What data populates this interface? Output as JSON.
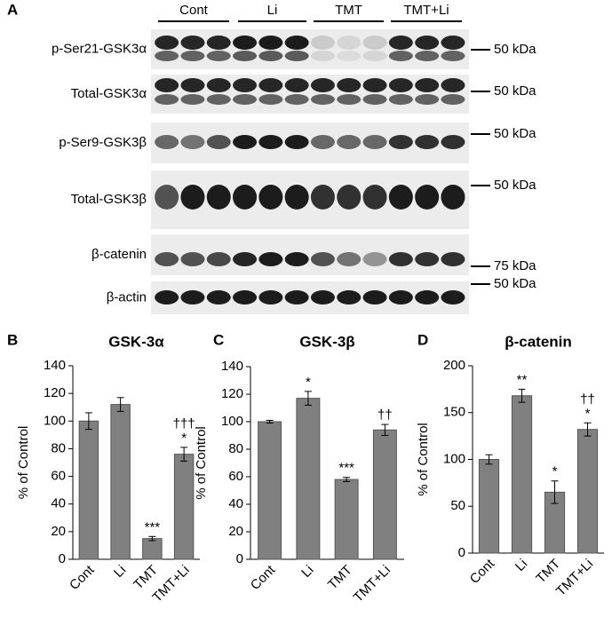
{
  "blot": {
    "panel": "A",
    "groups": [
      "Cont",
      "Li",
      "TMT",
      "TMT+Li"
    ],
    "rows": [
      {
        "label": "p-Ser21-GSK3α",
        "marker": "50 kDa"
      },
      {
        "label": "Total-GSK3α",
        "marker": "50 kDa"
      },
      {
        "label": "p-Ser9-GSK3β",
        "marker": "50 kDa"
      },
      {
        "label": "Total-GSK3β",
        "marker": "50 kDa"
      },
      {
        "label": "β-catenin",
        "marker": "75 kDa"
      },
      {
        "label": "β-actin",
        "marker": "50 kDa"
      }
    ]
  },
  "chart_data": [
    {
      "type": "bar",
      "panel": "B",
      "title": "GSK-3α",
      "y_label": "% of Control",
      "categories": [
        "Cont",
        "Li",
        "TMT",
        "TMT+Li"
      ],
      "values": [
        100,
        112,
        15,
        76
      ],
      "errors": [
        6,
        5,
        1.5,
        5
      ],
      "significance": [
        null,
        null,
        "***",
        "*"
      ],
      "daggers": [
        null,
        null,
        null,
        "†††"
      ],
      "color": "#808080",
      "ylim": [
        0,
        140
      ],
      "yticks": [
        0,
        20,
        40,
        60,
        80,
        100,
        120,
        140
      ],
      "grid": false
    },
    {
      "type": "bar",
      "panel": "C",
      "title": "GSK-3β",
      "y_label": "% of Control",
      "categories": [
        "Cont",
        "Li",
        "TMT",
        "TMT+Li"
      ],
      "values": [
        100,
        117,
        58,
        94
      ],
      "errors": [
        1,
        5,
        1.5,
        4
      ],
      "significance": [
        null,
        "*",
        "***",
        null
      ],
      "daggers": [
        null,
        null,
        null,
        "††"
      ],
      "color": "#808080",
      "ylim": [
        0,
        140
      ],
      "yticks": [
        0,
        20,
        40,
        60,
        80,
        100,
        120,
        140
      ],
      "grid": false
    },
    {
      "type": "bar",
      "panel": "D",
      "title": "β-catenin",
      "y_label": "% of Control",
      "categories": [
        "Cont",
        "Li",
        "TMT",
        "TMT+Li"
      ],
      "values": [
        100,
        168,
        65,
        132
      ],
      "errors": [
        5,
        7,
        12,
        7
      ],
      "significance": [
        null,
        "**",
        "*",
        "*"
      ],
      "daggers": [
        null,
        null,
        null,
        "††"
      ],
      "color": "#808080",
      "ylim": [
        0,
        200
      ],
      "yticks": [
        0,
        50,
        100,
        150,
        200
      ],
      "grid": false
    }
  ]
}
